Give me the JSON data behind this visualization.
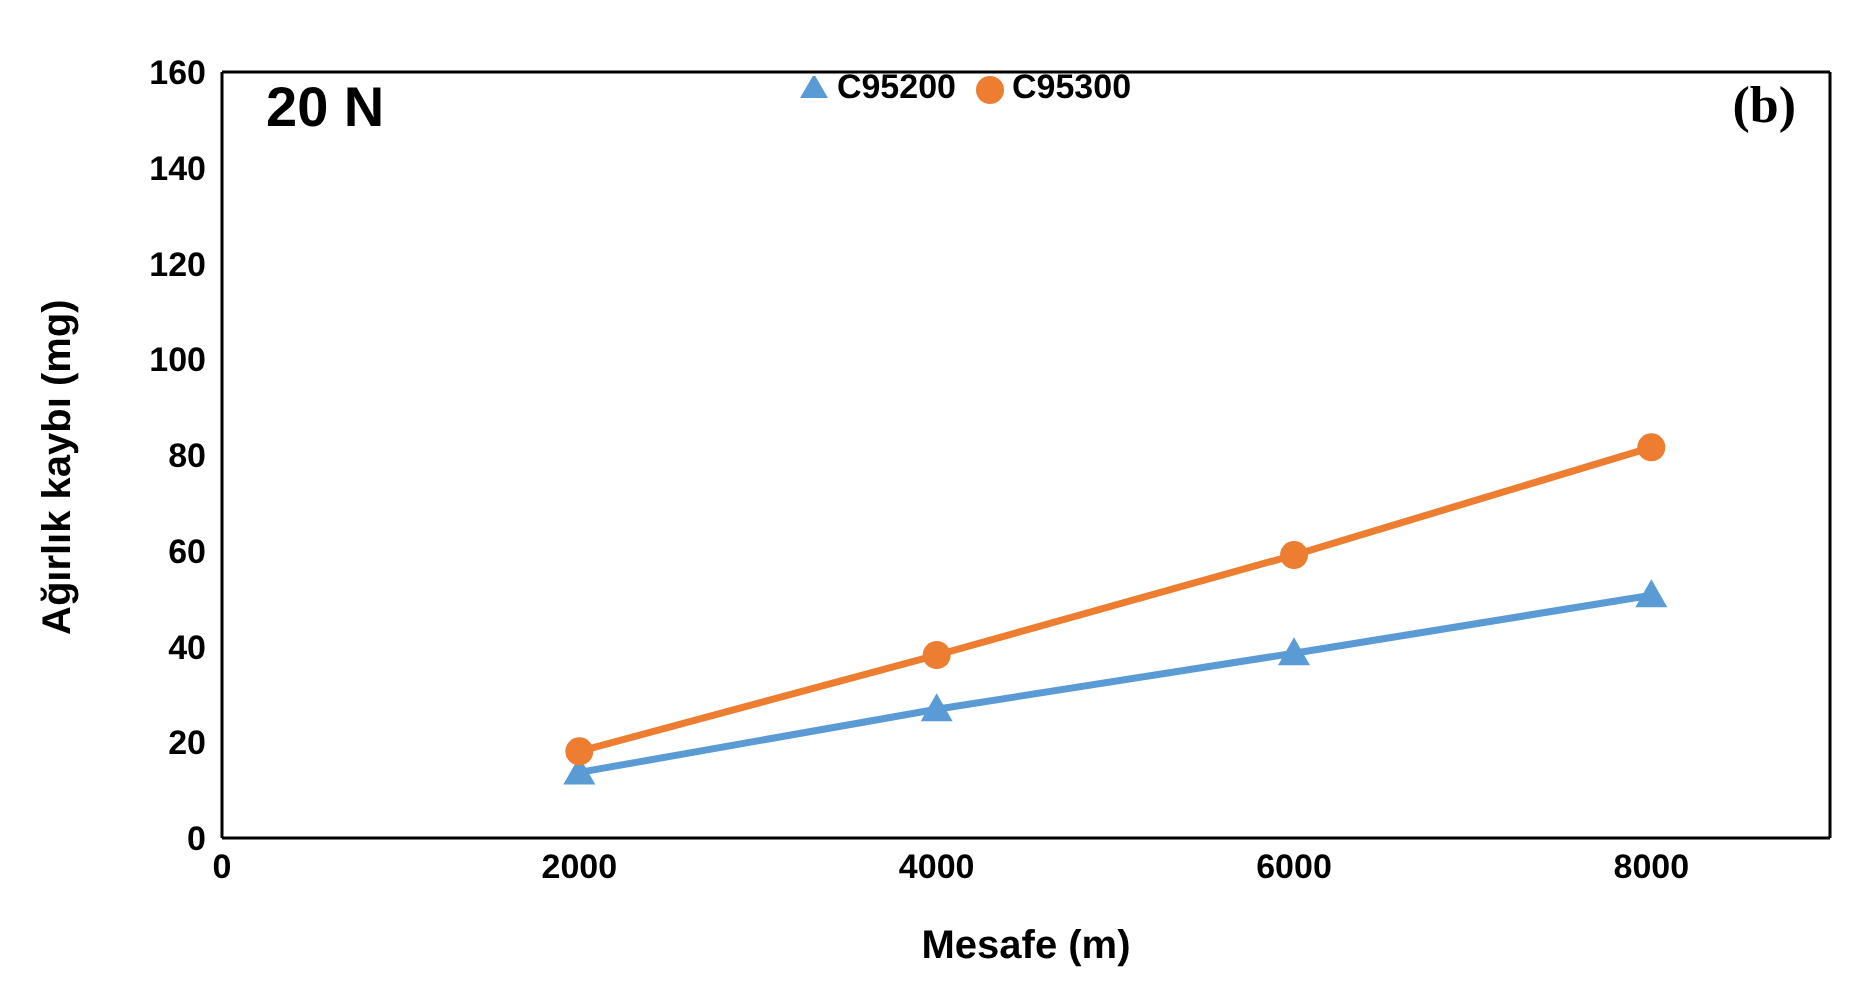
{
  "chart_data": {
    "type": "line",
    "xlabel": "Mesafe (m)",
    "ylabel": "Ağırlık kaybı (mg)",
    "annotations": [
      "20 N",
      "(b)"
    ],
    "x": [
      2000,
      4000,
      6000,
      8000
    ],
    "series": [
      {
        "name": "C95200",
        "color": "#5b9bd5",
        "marker": "triangle",
        "values": [
          13.7,
          26.9,
          38.6,
          50.7
        ]
      },
      {
        "name": "C95300",
        "color": "#ed7d31",
        "marker": "circle",
        "values": [
          18.1,
          38.2,
          59.1,
          81.6
        ]
      }
    ],
    "xlim": [
      0,
      9000
    ],
    "xticks": [
      0,
      2000,
      4000,
      6000,
      8000
    ],
    "ylim": [
      0,
      160
    ],
    "yticks": [
      0,
      20,
      40,
      60,
      80,
      100,
      120,
      140,
      160
    ],
    "grid": false,
    "legend": "top",
    "line_style": "solid"
  }
}
